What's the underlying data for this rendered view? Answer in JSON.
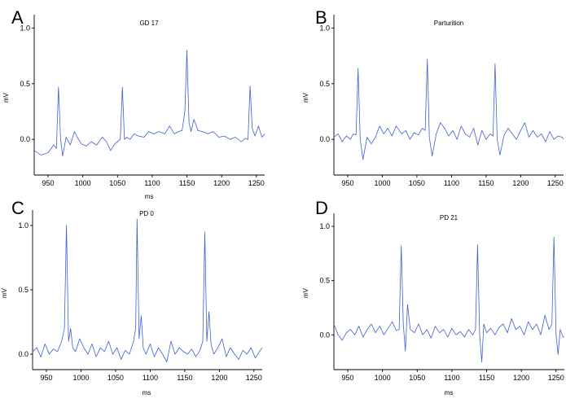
{
  "colors": {
    "trace": "#3f5fd3",
    "axis": "#000000"
  },
  "chart_data": [
    {
      "type": "line",
      "panel_letter": "A",
      "title": "GD 17",
      "xlabel": "ms",
      "ylabel": "mV",
      "xlim": [
        930,
        1262
      ],
      "ylim": [
        -0.32,
        1.12
      ],
      "xticks": [
        "950",
        "1000",
        "1050",
        "1100",
        "1150",
        "1200",
        "1250"
      ],
      "yticks": [
        "0.0",
        "0.5",
        "1.0"
      ],
      "grid": false,
      "series": [
        {
          "x": [
            930,
            940,
            950,
            958,
            962,
            965,
            968,
            971,
            976,
            982,
            988,
            992,
            998,
            1005,
            1012,
            1020,
            1028,
            1034,
            1040,
            1046,
            1050,
            1054,
            1057,
            1060,
            1063,
            1068,
            1074,
            1080,
            1088,
            1095,
            1102,
            1110,
            1118,
            1125,
            1132,
            1138,
            1143,
            1147,
            1150,
            1153,
            1156,
            1160,
            1166,
            1172,
            1180,
            1188,
            1196,
            1204,
            1212,
            1220,
            1228,
            1234,
            1238,
            1241,
            1244,
            1248,
            1253,
            1258,
            1262
          ],
          "y": [
            -0.1,
            -0.14,
            -0.12,
            -0.05,
            -0.08,
            0.47,
            0.0,
            -0.15,
            0.02,
            -0.05,
            0.07,
            0.02,
            -0.04,
            -0.06,
            -0.02,
            -0.05,
            0.02,
            -0.02,
            -0.1,
            -0.04,
            -0.02,
            0.0,
            0.47,
            0.0,
            0.02,
            0.0,
            0.05,
            0.03,
            0.02,
            0.07,
            0.05,
            0.07,
            0.05,
            0.12,
            0.05,
            0.07,
            0.08,
            0.25,
            0.8,
            0.15,
            0.07,
            0.18,
            0.08,
            0.07,
            0.05,
            0.07,
            0.02,
            0.03,
            0.0,
            0.02,
            -0.02,
            0.01,
            0.0,
            0.48,
            0.1,
            0.03,
            0.12,
            0.02,
            0.05
          ]
        }
      ]
    },
    {
      "type": "line",
      "panel_letter": "B",
      "title": "Parturition",
      "xlabel": "",
      "ylabel": "mV",
      "xlim": [
        930,
        1262
      ],
      "ylim": [
        -0.32,
        1.12
      ],
      "xticks": [
        "950",
        "1000",
        "1050",
        "1100",
        "1150",
        "1200",
        "1250"
      ],
      "yticks": [
        "0.0",
        "0.5",
        "1.0"
      ],
      "grid": false,
      "series": [
        {
          "x": [
            930,
            936,
            942,
            948,
            954,
            958,
            962,
            965,
            968,
            972,
            978,
            984,
            990,
            996,
            1002,
            1008,
            1014,
            1020,
            1028,
            1034,
            1040,
            1046,
            1052,
            1058,
            1062,
            1065,
            1068,
            1072,
            1078,
            1084,
            1090,
            1096,
            1102,
            1108,
            1114,
            1120,
            1126,
            1132,
            1138,
            1144,
            1150,
            1156,
            1160,
            1163,
            1166,
            1170,
            1176,
            1182,
            1188,
            1194,
            1200,
            1206,
            1212,
            1218,
            1224,
            1230,
            1236,
            1242,
            1248,
            1254,
            1260,
            1262
          ],
          "y": [
            0.02,
            0.05,
            -0.02,
            0.03,
            0.0,
            0.05,
            0.04,
            0.64,
            0.0,
            -0.18,
            0.02,
            -0.04,
            0.02,
            0.12,
            0.05,
            0.1,
            0.03,
            0.12,
            0.05,
            0.08,
            0.0,
            0.06,
            0.04,
            0.1,
            0.08,
            0.72,
            0.02,
            -0.15,
            0.05,
            0.15,
            0.1,
            0.03,
            0.08,
            0.0,
            0.12,
            0.05,
            0.02,
            0.1,
            -0.05,
            0.08,
            0.0,
            0.05,
            0.03,
            0.68,
            0.0,
            -0.14,
            0.04,
            0.1,
            0.05,
            0.0,
            0.08,
            0.15,
            0.02,
            0.08,
            0.02,
            0.05,
            -0.02,
            0.07,
            0.0,
            0.03,
            0.02,
            0.0
          ]
        }
      ]
    },
    {
      "type": "line",
      "panel_letter": "C",
      "title": "PD 0",
      "xlabel": "ms",
      "ylabel": "mV",
      "xlim": [
        930,
        1262
      ],
      "ylim": [
        -0.12,
        1.12
      ],
      "xticks": [
        "950",
        "1000",
        "1050",
        "1100",
        "1150",
        "1200",
        "1250"
      ],
      "yticks": [
        "0.0",
        "0.5",
        "1.0"
      ],
      "grid": false,
      "series": [
        {
          "x": [
            930,
            936,
            942,
            948,
            954,
            960,
            966,
            972,
            976,
            979,
            982,
            985,
            988,
            992,
            998,
            1004,
            1010,
            1016,
            1022,
            1028,
            1034,
            1040,
            1046,
            1052,
            1058,
            1064,
            1070,
            1076,
            1079,
            1081,
            1084,
            1087,
            1090,
            1094,
            1100,
            1106,
            1112,
            1118,
            1124,
            1130,
            1136,
            1142,
            1148,
            1154,
            1160,
            1166,
            1172,
            1176,
            1179,
            1182,
            1185,
            1188,
            1192,
            1198,
            1204,
            1210,
            1216,
            1222,
            1228,
            1234,
            1240,
            1246,
            1252,
            1258,
            1262
          ],
          "y": [
            0.02,
            0.05,
            -0.02,
            0.08,
            0.0,
            0.04,
            0.02,
            0.1,
            0.2,
            1.0,
            0.1,
            0.2,
            0.05,
            0.02,
            0.12,
            0.05,
            0.0,
            0.08,
            -0.02,
            0.05,
            0.02,
            0.1,
            0.0,
            0.05,
            -0.04,
            0.03,
            0.0,
            0.1,
            0.2,
            1.05,
            0.12,
            0.3,
            0.05,
            0.0,
            0.08,
            -0.02,
            0.05,
            0.0,
            -0.06,
            0.1,
            0.0,
            0.05,
            0.02,
            0.0,
            0.04,
            -0.02,
            0.03,
            0.1,
            0.95,
            0.1,
            0.33,
            0.08,
            0.0,
            0.05,
            0.12,
            -0.02,
            0.05,
            0.0,
            -0.04,
            0.03,
            0.0,
            0.05,
            -0.03,
            0.02,
            0.05
          ]
        }
      ]
    },
    {
      "type": "line",
      "panel_letter": "D",
      "title": "PD 21",
      "xlabel": "ms",
      "ylabel": "mV",
      "xlim": [
        930,
        1262
      ],
      "ylim": [
        -0.32,
        1.12
      ],
      "xticks": [
        "950",
        "1000",
        "1050",
        "1100",
        "1150",
        "1200",
        "1250"
      ],
      "yticks": [
        "0.0",
        "0.5",
        "1.0"
      ],
      "grid": false,
      "series": [
        {
          "x": [
            930,
            936,
            942,
            948,
            954,
            960,
            966,
            972,
            978,
            984,
            990,
            996,
            1002,
            1008,
            1014,
            1020,
            1024,
            1027,
            1030,
            1033,
            1036,
            1040,
            1046,
            1052,
            1058,
            1064,
            1070,
            1076,
            1082,
            1088,
            1094,
            1100,
            1106,
            1112,
            1118,
            1124,
            1130,
            1134,
            1137,
            1140,
            1143,
            1146,
            1150,
            1156,
            1162,
            1168,
            1174,
            1180,
            1186,
            1192,
            1198,
            1204,
            1210,
            1216,
            1222,
            1228,
            1234,
            1240,
            1244,
            1247,
            1250,
            1253,
            1256,
            1260,
            1262
          ],
          "y": [
            0.1,
            0.0,
            -0.05,
            0.02,
            0.05,
            0.0,
            0.08,
            -0.02,
            0.05,
            0.1,
            0.02,
            0.08,
            0.0,
            0.06,
            0.12,
            0.04,
            0.05,
            0.82,
            0.1,
            -0.15,
            0.28,
            0.05,
            0.02,
            0.1,
            0.0,
            0.05,
            -0.03,
            0.08,
            0.02,
            0.05,
            -0.02,
            0.06,
            0.0,
            0.03,
            -0.02,
            0.05,
            0.0,
            0.05,
            0.83,
            0.0,
            -0.25,
            0.1,
            0.02,
            0.06,
            0.0,
            0.07,
            0.1,
            0.02,
            0.15,
            0.05,
            0.08,
            0.0,
            0.12,
            0.05,
            0.1,
            0.0,
            0.18,
            0.05,
            0.1,
            0.9,
            0.0,
            -0.18,
            0.05,
            -0.02,
            -0.02
          ]
        }
      ]
    }
  ]
}
